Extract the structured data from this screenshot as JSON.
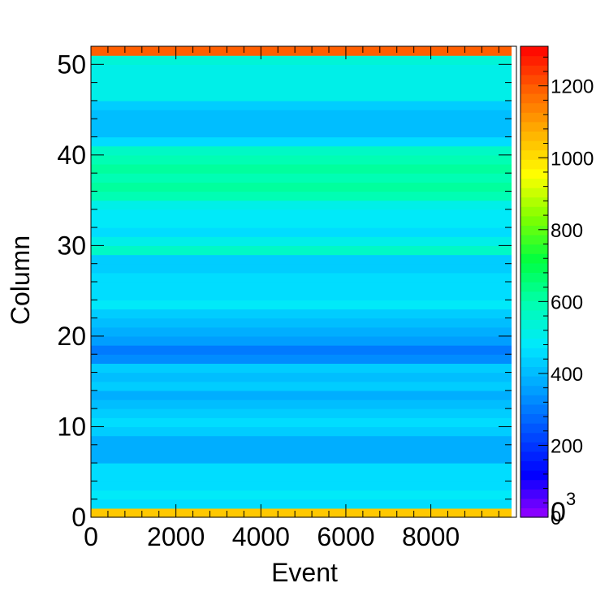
{
  "chart_data": {
    "type": "heatmap",
    "title": "",
    "xlabel": "Event",
    "ylabel": "Column",
    "xlim": [
      0,
      9900
    ],
    "ylim": [
      0,
      52
    ],
    "x_ticks": [
      "0",
      "2000",
      "4000",
      "6000",
      "8000"
    ],
    "y_ticks": [
      "0",
      "10",
      "20",
      "30",
      "40",
      "50"
    ],
    "zlim": [
      0,
      1310
    ],
    "z_ticks": [
      "0",
      "200",
      "400",
      "600",
      "800",
      "1000",
      "1200"
    ],
    "z_overlay_label": "0",
    "z_exponent_label": "3",
    "colormap": [
      "#9900ff",
      "#0000ff",
      "#0050ff",
      "#00a0ff",
      "#00e8ff",
      "#00ffb0",
      "#00ff40",
      "#80ff00",
      "#ffff00",
      "#ffb000",
      "#ff6000",
      "#ff0000"
    ],
    "row_values": [
      1040,
      470,
      480,
      470,
      460,
      450,
      390,
      370,
      380,
      430,
      450,
      420,
      400,
      390,
      430,
      410,
      420,
      330,
      310,
      350,
      390,
      410,
      440,
      480,
      470,
      470,
      460,
      430,
      440,
      560,
      520,
      470,
      480,
      490,
      500,
      600,
      620,
      600,
      610,
      590,
      560,
      450,
      410,
      400,
      400,
      420,
      500,
      520,
      510,
      520,
      540,
      1200
    ]
  }
}
